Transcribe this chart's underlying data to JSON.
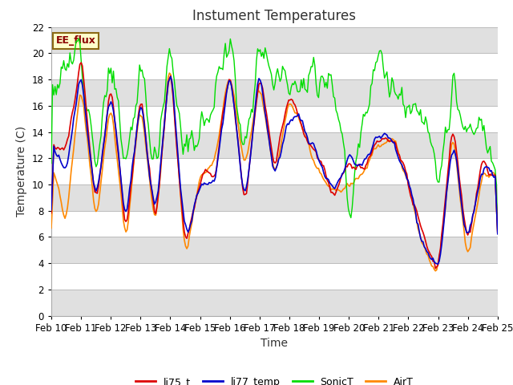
{
  "title": "Instument Temperatures",
  "ylabel": "Temperature (C)",
  "xlabel": "Time",
  "ylim": [
    0,
    22
  ],
  "xtick_labels": [
    "Feb 10",
    "Feb 11",
    "Feb 12",
    "Feb 13",
    "Feb 14",
    "Feb 15",
    "Feb 16",
    "Feb 17",
    "Feb 18",
    "Feb 19",
    "Feb 20",
    "Feb 21",
    "Feb 22",
    "Feb 23",
    "Feb 24",
    "Feb 25"
  ],
  "annotation": "EE_flux",
  "fig_bg": "#ffffff",
  "plot_bg": "#f0f0f0",
  "band_color": "#e0e0e0",
  "white_band": "#ffffff",
  "line_colors": {
    "li75_t": "#dd0000",
    "li77_temp": "#0000cc",
    "SonicT": "#00dd00",
    "AirT": "#ff8800"
  },
  "title_fontsize": 12,
  "axis_fontsize": 10,
  "tick_fontsize": 8.5
}
